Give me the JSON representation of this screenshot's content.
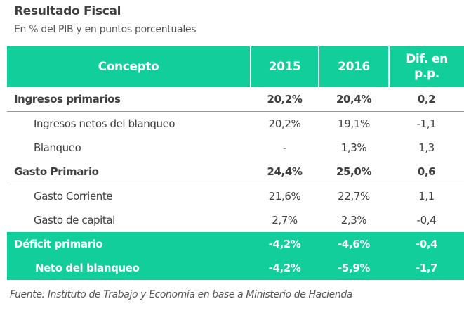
{
  "title": "Resultado  Fiscal",
  "subtitle": "En % del PIB y en puntos porcentuales",
  "chart_data": {
    "type": "table",
    "columns": [
      "Concepto",
      "2015",
      "2016",
      "Dif. en p.p."
    ],
    "rows": [
      {
        "label": "Ingresos primarios",
        "v2015": "20,2%",
        "v2016": "20,4%",
        "dif": "0,2",
        "style": "bold"
      },
      {
        "label": "Ingresos netos del blanqueo",
        "v2015": "20,2%",
        "v2016": "19,1%",
        "dif": "-1,1",
        "style": "sub"
      },
      {
        "label": "Blanqueo",
        "v2015": "-",
        "v2016": "1,3%",
        "dif": "1,3",
        "style": "sub"
      },
      {
        "label": "Gasto Primario",
        "v2015": "24,4%",
        "v2016": "25,0%",
        "dif": "0,6",
        "style": "bold"
      },
      {
        "label": "Gasto Corriente",
        "v2015": "21,6%",
        "v2016": "22,7%",
        "dif": "1,1",
        "style": "sub"
      },
      {
        "label": "Gasto de capital",
        "v2015": "2,7%",
        "v2016": "2,3%",
        "dif": "-0,4",
        "style": "sub"
      },
      {
        "label": "Déficit primario",
        "v2015": "-4,2%",
        "v2016": "-4,6%",
        "dif": "-0,4",
        "style": "green"
      },
      {
        "label": "Neto del blanqueo",
        "v2015": "-4,2%",
        "v2016": "-5,9%",
        "dif": "-1,7",
        "style": "green-sub"
      }
    ],
    "accent_color": "#12ce9a"
  },
  "footnote": "Fuente: Instituto de Trabajo y Economía en base a Ministerio de Hacienda"
}
